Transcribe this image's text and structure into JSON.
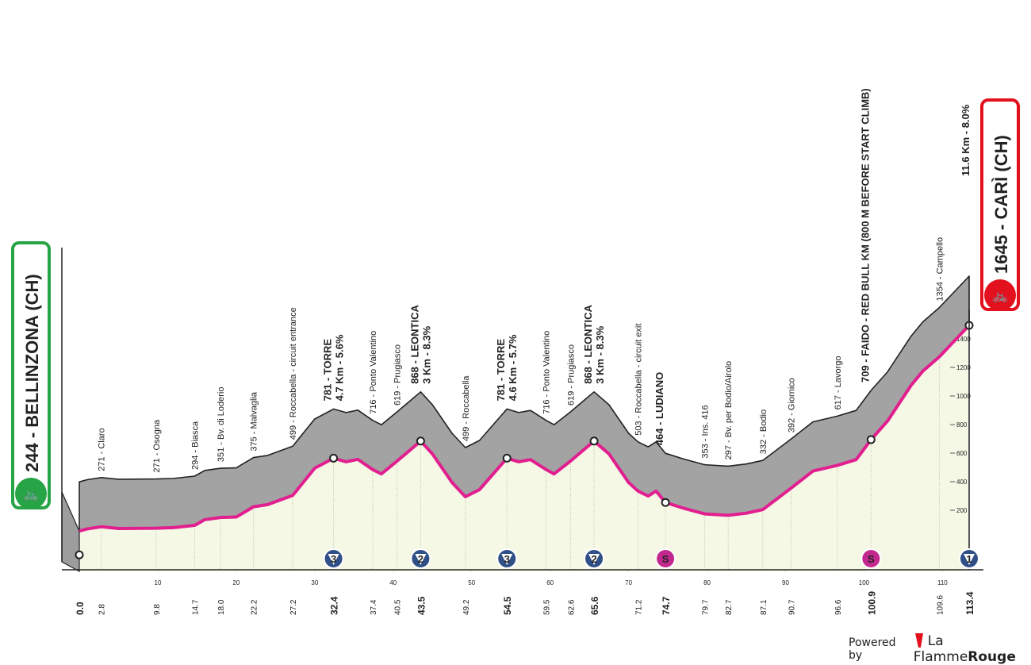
{
  "chart_data": {
    "type": "area",
    "xlim": [
      0,
      113.4
    ],
    "ylim": [
      0,
      1800
    ],
    "x_ticks": [
      0,
      10,
      20,
      30,
      40,
      50,
      60,
      70,
      80,
      90,
      100,
      110
    ],
    "y_ticks": [
      200,
      400,
      600,
      800,
      1000,
      1200,
      1400
    ],
    "profile": [
      [
        0,
        360
      ],
      [
        1,
        375
      ],
      [
        2.8,
        390
      ],
      [
        5,
        378
      ],
      [
        9.8,
        380
      ],
      [
        12,
        384
      ],
      [
        14.7,
        400
      ],
      [
        16,
        440
      ],
      [
        18.0,
        455
      ],
      [
        20,
        458
      ],
      [
        22.2,
        530
      ],
      [
        24,
        545
      ],
      [
        27.2,
        610
      ],
      [
        30,
        800
      ],
      [
        32.4,
        870
      ],
      [
        34,
        845
      ],
      [
        35.5,
        862
      ],
      [
        37.4,
        790
      ],
      [
        38.5,
        760
      ],
      [
        40.5,
        850
      ],
      [
        43.5,
        990
      ],
      [
        45,
        900
      ],
      [
        47.5,
        700
      ],
      [
        49.2,
        600
      ],
      [
        51,
        650
      ],
      [
        54.5,
        870
      ],
      [
        56,
        845
      ],
      [
        57.5,
        860
      ],
      [
        59.5,
        790
      ],
      [
        60.5,
        760
      ],
      [
        62.6,
        850
      ],
      [
        65.6,
        990
      ],
      [
        67.5,
        900
      ],
      [
        70,
        700
      ],
      [
        71.2,
        640
      ],
      [
        72.5,
        605
      ],
      [
        73.5,
        640
      ],
      [
        74.7,
        560
      ],
      [
        77,
        520
      ],
      [
        79.7,
        480
      ],
      [
        82.7,
        470
      ],
      [
        85,
        485
      ],
      [
        87.1,
        510
      ],
      [
        90.7,
        660
      ],
      [
        93.5,
        780
      ],
      [
        96.6,
        820
      ],
      [
        99,
        860
      ],
      [
        100.9,
        1000
      ],
      [
        103,
        1130
      ],
      [
        106,
        1380
      ],
      [
        107.5,
        1480
      ],
      [
        109.6,
        1580
      ],
      [
        113.4,
        1800
      ]
    ],
    "start": {
      "km": "0.0",
      "alt": "244",
      "name": "BELLINZONA (CH)"
    },
    "finish": {
      "km": "113.4",
      "alt": "1645",
      "name": "CARÌ (CH)",
      "climb": "11.6 Km - 8.0%"
    },
    "waypoints": [
      {
        "km": "2.8",
        "text": "271 - Claro"
      },
      {
        "km": "9.8",
        "text": "271 - Osogna"
      },
      {
        "km": "14.7",
        "text": "294 - Biasca"
      },
      {
        "km": "18.0",
        "text": "351 - Bv. di Loderio"
      },
      {
        "km": "22.2",
        "text": "375 - Malvaglia"
      },
      {
        "km": "27.2",
        "text": "499 - Roccabella - circuit entrance"
      },
      {
        "km": "37.4",
        "text": "716 - Ponto Valentino"
      },
      {
        "km": "40.5",
        "text": "619 - Prugiasco"
      },
      {
        "km": "49.2",
        "text": "499 - Roccabella"
      },
      {
        "km": "59.5",
        "text": "716 - Ponto Valentino"
      },
      {
        "km": "62.6",
        "text": "619 - Prugiasco"
      },
      {
        "km": "71.2",
        "text": "503 - Roccabella - circuit exit"
      },
      {
        "km": "79.7",
        "text": "353 - Ins. 416"
      },
      {
        "km": "82.7",
        "text": "297 - Bv. per Bodio/Airolo"
      },
      {
        "km": "87.1",
        "text": "332 - Bodio"
      },
      {
        "km": "90.7",
        "text": "392 - Giornico"
      },
      {
        "km": "96.6",
        "text": "617 - Lavorgo"
      },
      {
        "km": "109.6",
        "text": "1354 - Campello"
      }
    ],
    "major_points": [
      {
        "km": "32.4",
        "line1": "781 - TORRE",
        "line2": "4.7 Km - 5.6%",
        "badge": "3",
        "badge_type": "kom"
      },
      {
        "km": "43.5",
        "line1": "868 - LEONTICA",
        "line2": "3 Km - 8.3%",
        "badge": "2",
        "badge_type": "kom"
      },
      {
        "km": "54.5",
        "line1": "781 - TORRE",
        "line2": "4.6 Km - 5.7%",
        "badge": "3",
        "badge_type": "kom"
      },
      {
        "km": "65.6",
        "line1": "868 - LEONTICA",
        "line2": "3 Km - 8.3%",
        "badge": "2",
        "badge_type": "kom"
      },
      {
        "km": "74.7",
        "line1": "464 - LUDIANO",
        "line2": "",
        "badge": "S",
        "badge_type": "sprint"
      },
      {
        "km": "100.9",
        "line1": "709 - FAIDO - RED BULL KM (800 M BEFORE START CLIMB)",
        "line2": "",
        "badge": "S",
        "badge_type": "sprint"
      },
      {
        "km": "113.4",
        "line1": "",
        "line2": "",
        "badge": "1",
        "badge_type": "kom"
      }
    ],
    "colors": {
      "profile": "#a3a3a3",
      "fill": "#f6f8e6",
      "route": "#e11f8f",
      "kom": "#2f4f86",
      "sprint": "#c2288e",
      "start": "#27a546",
      "finish": "#e3101e",
      "edge": "#222222"
    }
  },
  "credit": {
    "powered": "Powered by",
    "brand_a": "La Flamme",
    "brand_b": "Rouge"
  }
}
